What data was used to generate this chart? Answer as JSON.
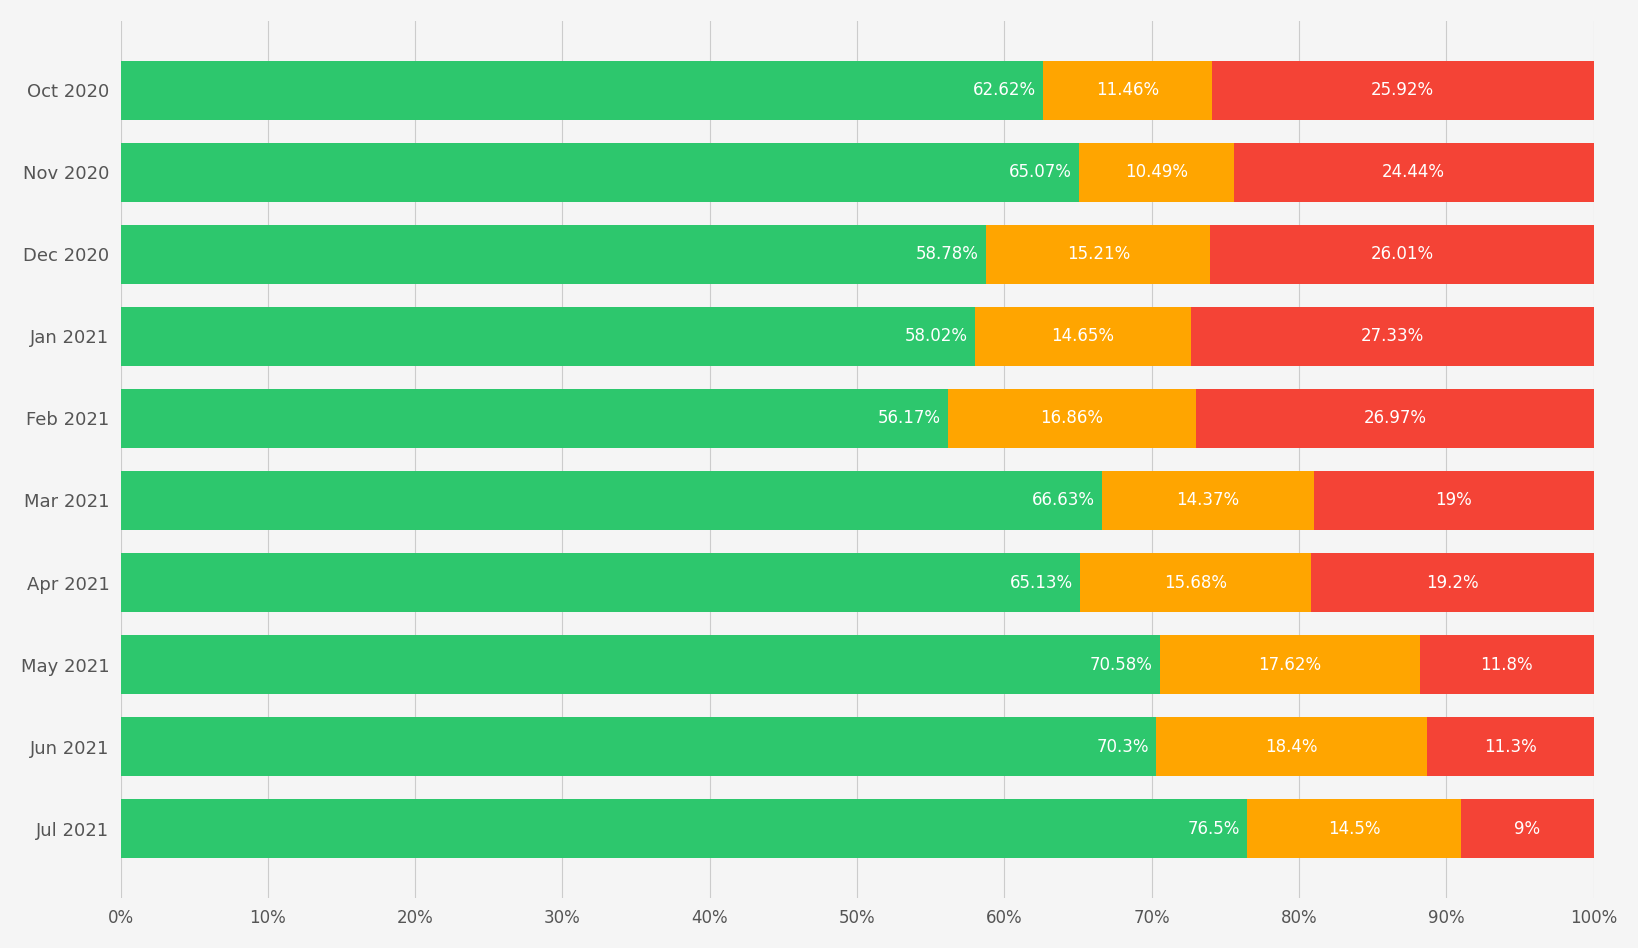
{
  "months": [
    "Oct 2020",
    "Nov 2020",
    "Dec 2020",
    "Jan 2021",
    "Feb 2021",
    "Mar 2021",
    "Apr 2021",
    "May 2021",
    "Jun 2021",
    "Jul 2021"
  ],
  "good": [
    62.62,
    65.07,
    58.78,
    58.02,
    56.17,
    66.63,
    65.13,
    70.58,
    70.3,
    76.5
  ],
  "medium": [
    11.46,
    10.49,
    15.21,
    14.65,
    16.86,
    14.37,
    15.68,
    17.62,
    18.4,
    14.5
  ],
  "bad": [
    25.92,
    24.44,
    26.01,
    27.33,
    26.97,
    19.0,
    19.2,
    11.8,
    11.3,
    9.0
  ],
  "good_labels": [
    "62.62%",
    "65.07%",
    "58.78%",
    "58.02%",
    "56.17%",
    "66.63%",
    "65.13%",
    "70.58%",
    "70.3%",
    "76.5%"
  ],
  "medium_labels": [
    "11.46%",
    "10.49%",
    "15.21%",
    "14.65%",
    "16.86%",
    "14.37%",
    "15.68%",
    "17.62%",
    "18.4%",
    "14.5%"
  ],
  "bad_labels": [
    "25.92%",
    "24.44%",
    "26.01%",
    "27.33%",
    "26.97%",
    "19%",
    "19.2%",
    "11.8%",
    "11.3%",
    "9%"
  ],
  "color_good": "#2DC76D",
  "color_medium": "#FFA500",
  "color_bad": "#F44336",
  "background_color": "#F5F5F5",
  "bar_height": 0.72,
  "text_color": "#FFFFFF",
  "xlabel_ticks": [
    "0%",
    "10%",
    "20%",
    "30%",
    "40%",
    "50%",
    "60%",
    "70%",
    "80%",
    "90%",
    "100%"
  ],
  "xlabel_vals": [
    0,
    10,
    20,
    30,
    40,
    50,
    60,
    70,
    80,
    90,
    100
  ],
  "label_fontsize": 12,
  "ytick_fontsize": 13,
  "xtick_fontsize": 12
}
